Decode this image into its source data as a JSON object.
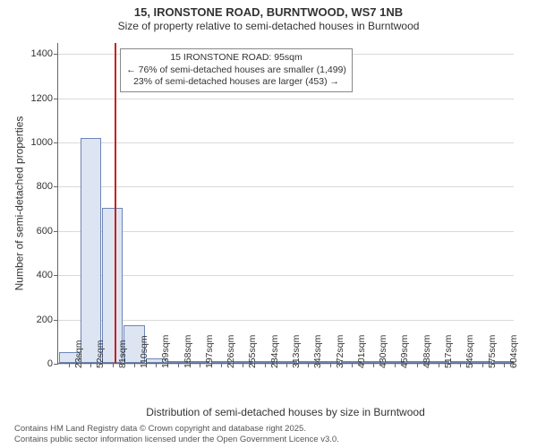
{
  "title": {
    "main": "15, IRONSTONE ROAD, BURNTWOOD, WS7 1NB",
    "sub": "Size of property relative to semi-detached houses in Burntwood"
  },
  "y_axis": {
    "label": "Number of semi-detached properties",
    "min": 0,
    "max": 1450,
    "ticks": [
      0,
      200,
      400,
      600,
      800,
      1000,
      1200,
      1400
    ]
  },
  "x_axis": {
    "label": "Distribution of semi-detached houses by size in Burntwood",
    "tick_labels": [
      "23sqm",
      "52sqm",
      "81sqm",
      "110sqm",
      "139sqm",
      "168sqm",
      "197sqm",
      "226sqm",
      "255sqm",
      "284sqm",
      "313sqm",
      "343sqm",
      "372sqm",
      "401sqm",
      "430sqm",
      "459sqm",
      "488sqm",
      "517sqm",
      "546sqm",
      "575sqm",
      "604sqm"
    ]
  },
  "bars": {
    "values": [
      50,
      1018,
      700,
      172,
      22,
      10,
      5,
      3,
      2,
      1,
      1,
      0,
      0,
      0,
      0,
      0,
      0,
      0,
      0,
      0,
      1
    ],
    "fill_color": "#dde5f3",
    "border_color": "#6e85b6",
    "border_width": 1
  },
  "reference": {
    "position_sqm": 95,
    "line_color": "#c82020"
  },
  "annotation": {
    "line1": "15 IRONSTONE ROAD: 95sqm",
    "line2": "← 76% of semi-detached houses are smaller (1,499)",
    "line3": "23% of semi-detached houses are larger (453) →"
  },
  "footer": {
    "line1": "Contains HM Land Registry data © Crown copyright and database right 2025.",
    "line2": "Contains public sector information licensed under the Open Government Licence v3.0."
  },
  "style": {
    "grid_color": "#d9d9d9",
    "axis_color": "#666",
    "background": "#ffffff",
    "label_fontsize": 12,
    "tick_fontsize": 11,
    "title_fontsize": 13
  }
}
